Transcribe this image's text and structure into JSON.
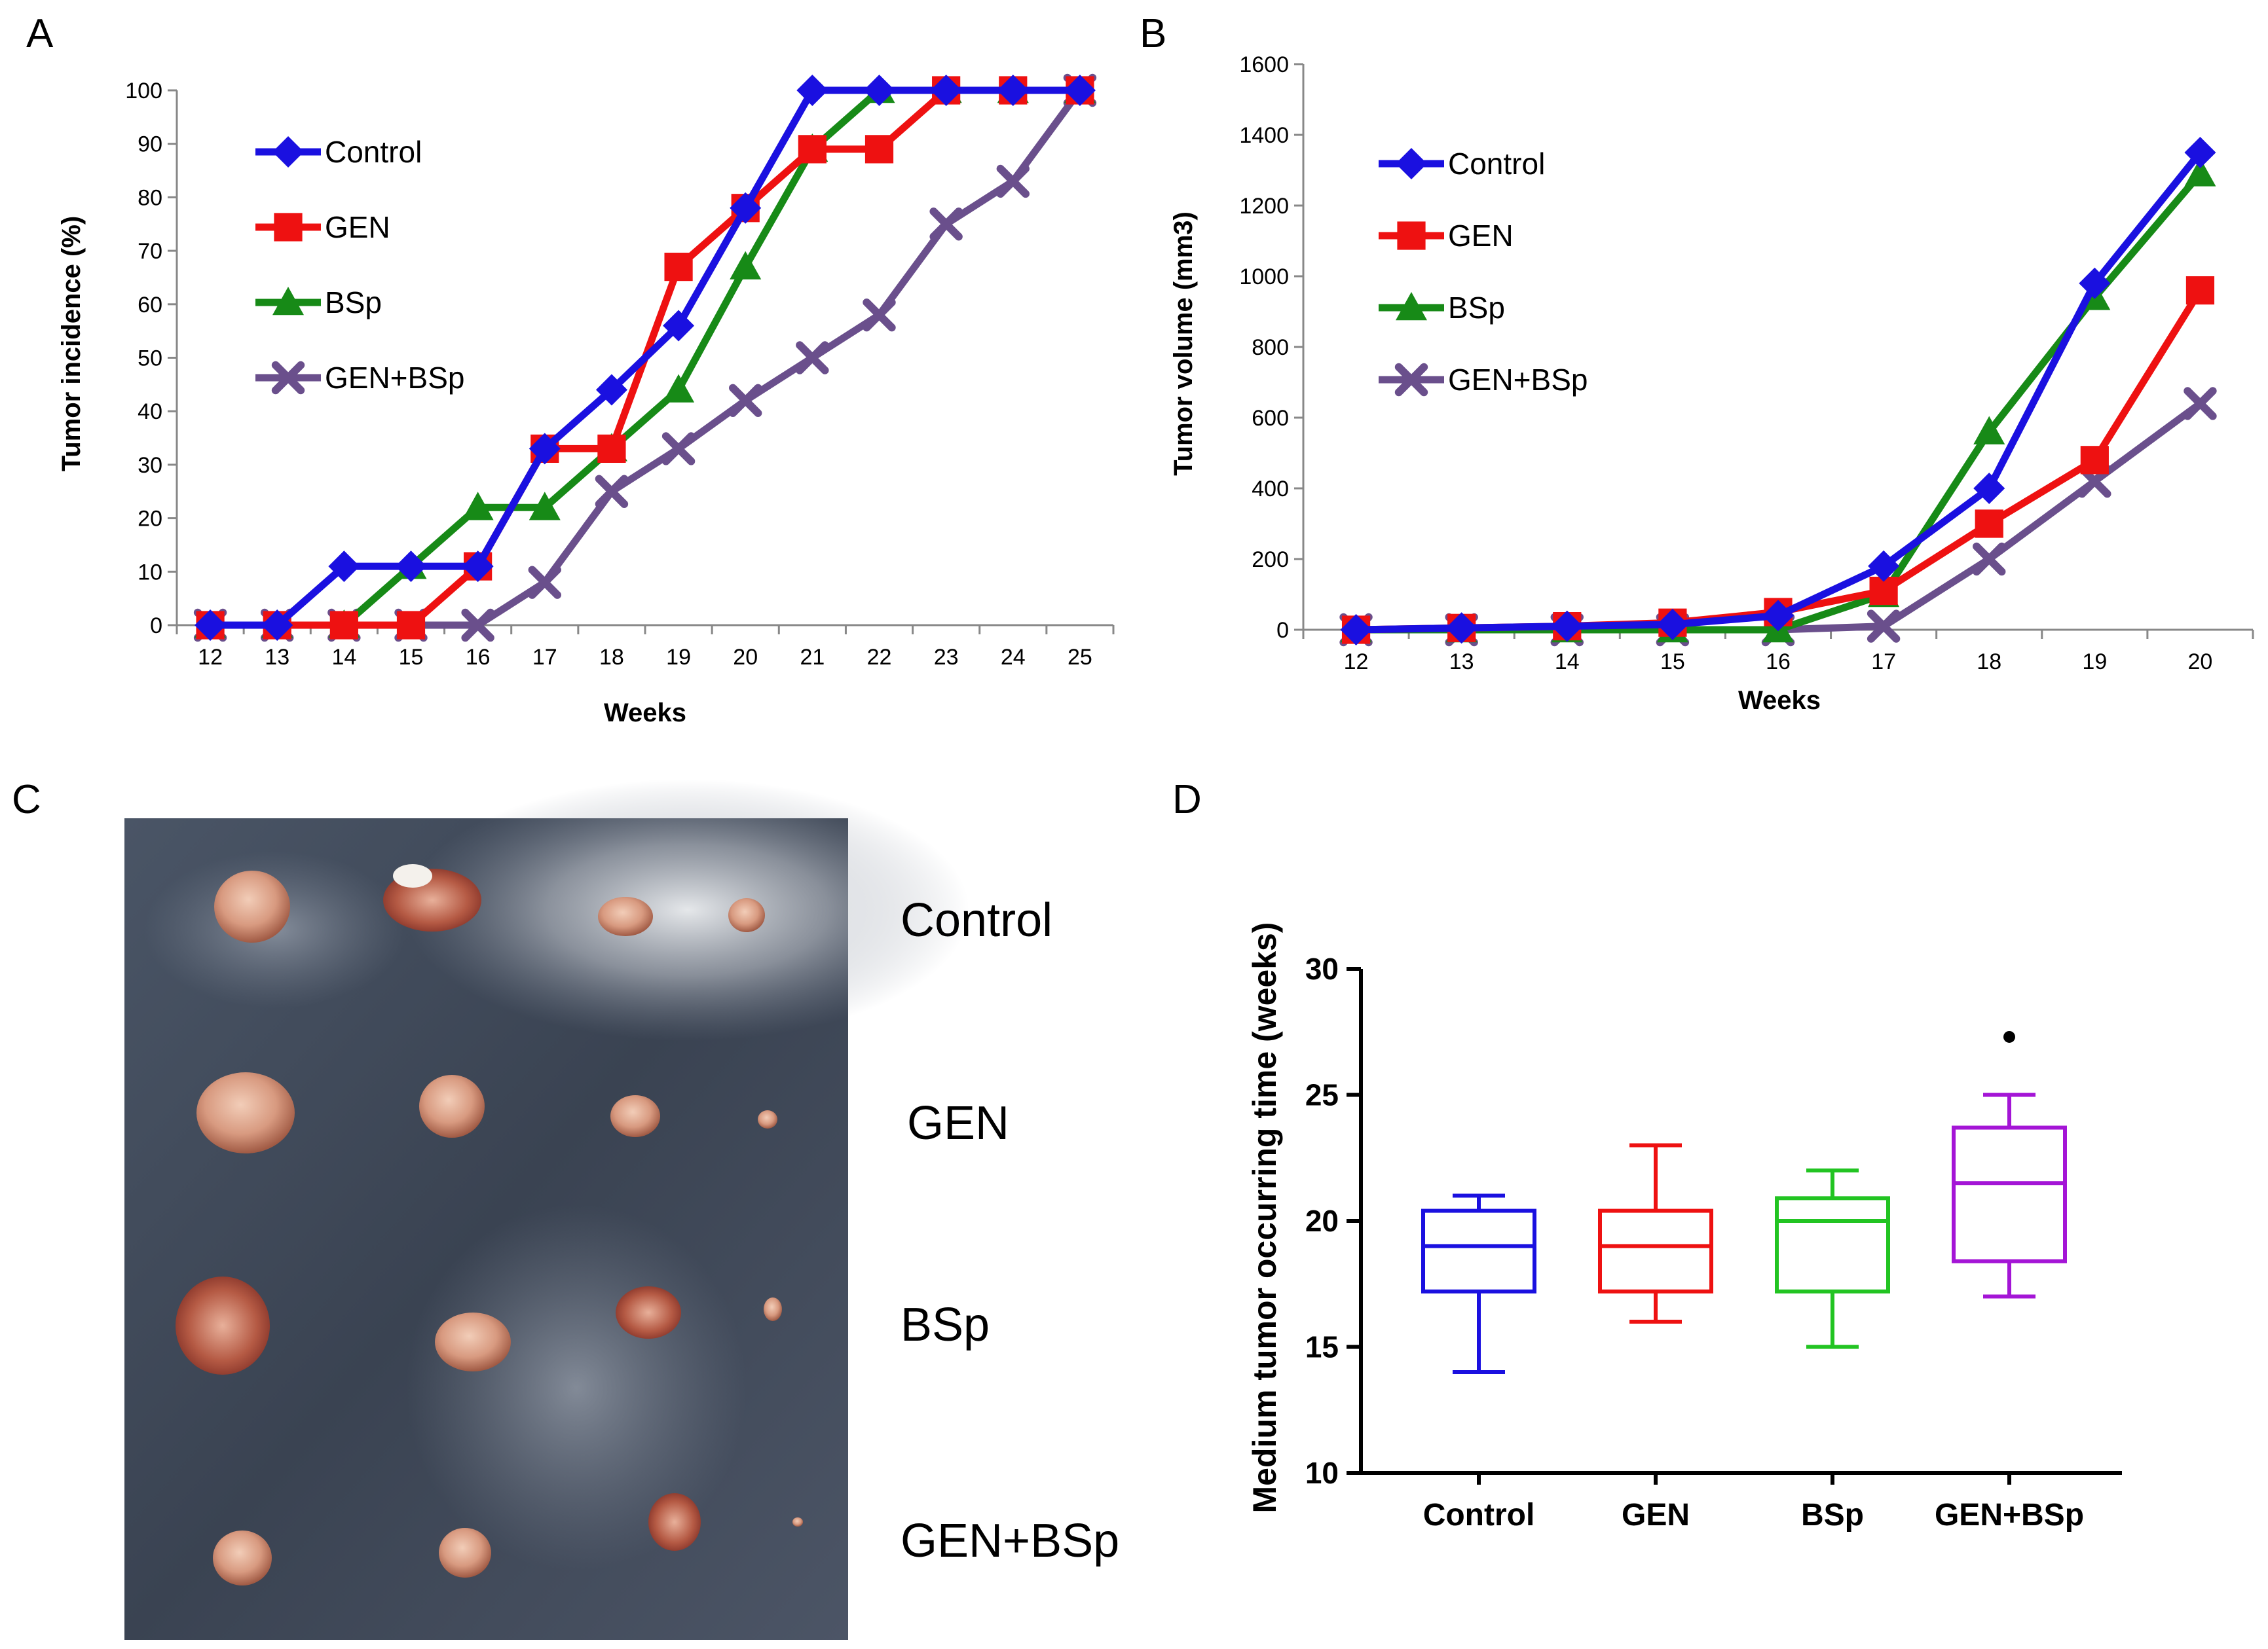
{
  "panels": {
    "a": "A",
    "b": "B",
    "c": "C",
    "d": "D"
  },
  "colors": {
    "control": "#1a10e0",
    "gen": "#ee1111",
    "bsp": "#178a17",
    "genbsp": "#6a4f8c"
  },
  "chart_data": [
    {
      "type": "line",
      "panel": "A",
      "xlabel": "Weeks",
      "ylabel": "Tumor incidence (%)",
      "ylim": [
        0,
        100
      ],
      "x": [
        12,
        13,
        14,
        15,
        16,
        17,
        18,
        19,
        20,
        21,
        22,
        23,
        24,
        25
      ],
      "yticks": [
        0,
        10,
        20,
        30,
        40,
        50,
        60,
        70,
        80,
        90,
        100
      ],
      "legend_position": "top-left",
      "series": [
        {
          "name": "Control",
          "marker": "diamond",
          "values": [
            0,
            0,
            11,
            11,
            11,
            33,
            44,
            56,
            78,
            100,
            100,
            100,
            100,
            100
          ]
        },
        {
          "name": "GEN",
          "marker": "square",
          "values": [
            0,
            0,
            0,
            0,
            11,
            33,
            33,
            67,
            78,
            89,
            89,
            100,
            100,
            100
          ]
        },
        {
          "name": "BSp",
          "marker": "triangle",
          "values": [
            0,
            0,
            0,
            11,
            22,
            22,
            33,
            44,
            67,
            89,
            100,
            100,
            100,
            100
          ]
        },
        {
          "name": "GEN+BSp",
          "marker": "cross",
          "values": [
            0,
            0,
            0,
            0,
            0,
            8,
            25,
            33,
            42,
            50,
            58,
            75,
            83,
            100
          ]
        }
      ]
    },
    {
      "type": "line",
      "panel": "B",
      "xlabel": "Weeks",
      "ylabel": "Tumor volume (mm3)",
      "ylim": [
        0,
        1600
      ],
      "x": [
        12,
        13,
        14,
        15,
        16,
        17,
        18,
        19,
        20
      ],
      "yticks": [
        0,
        200,
        400,
        600,
        800,
        1000,
        1200,
        1400,
        1600
      ],
      "legend_position": "top-left",
      "series": [
        {
          "name": "Control",
          "marker": "diamond",
          "values": [
            0,
            5,
            10,
            15,
            40,
            180,
            400,
            980,
            1350
          ]
        },
        {
          "name": "GEN",
          "marker": "square",
          "values": [
            0,
            5,
            10,
            20,
            50,
            110,
            300,
            480,
            960
          ]
        },
        {
          "name": "BSp",
          "marker": "triangle",
          "values": [
            0,
            0,
            0,
            0,
            0,
            100,
            560,
            940,
            1290
          ]
        },
        {
          "name": "GEN+BSp",
          "marker": "cross",
          "values": [
            0,
            0,
            0,
            0,
            0,
            10,
            200,
            420,
            640
          ]
        }
      ]
    },
    {
      "type": "box",
      "panel": "D",
      "ylabel": "Medium tumor occurring time (weeks)",
      "ylim": [
        10,
        30
      ],
      "yticks": [
        10,
        15,
        20,
        25,
        30
      ],
      "categories": [
        "Control",
        "GEN",
        "BSp",
        "GEN+BSp"
      ],
      "boxes": [
        {
          "min": 14,
          "q1": 17.2,
          "median": 19,
          "q3": 20.4,
          "max": 21,
          "outliers": []
        },
        {
          "min": 16,
          "q1": 17.2,
          "median": 19,
          "q3": 20.4,
          "max": 23,
          "outliers": []
        },
        {
          "min": 15,
          "q1": 17.2,
          "median": 20,
          "q3": 20.9,
          "max": 22,
          "outliers": []
        },
        {
          "min": 17,
          "q1": 18.4,
          "median": 21.5,
          "q3": 23.7,
          "max": 25,
          "outliers": [
            27.3
          ]
        }
      ],
      "box_colors": [
        "#1a10e0",
        "#ee1111",
        "#22c422",
        "#a415d6"
      ]
    }
  ],
  "photo": {
    "rows": [
      "Control",
      "GEN",
      "BSp",
      "GEN+BSp"
    ],
    "description_hidden": true
  }
}
